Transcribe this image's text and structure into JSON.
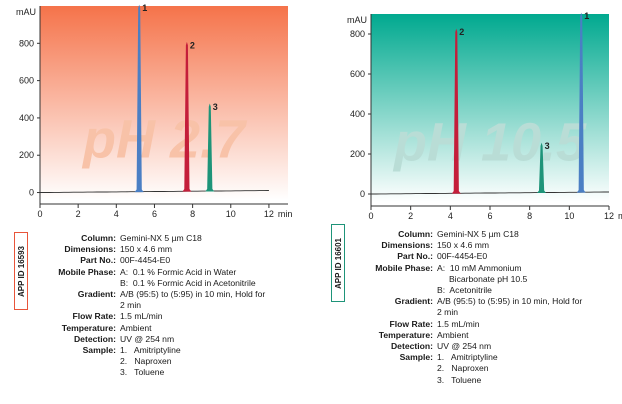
{
  "chart_data": [
    {
      "type": "line",
      "title": "",
      "watermark": "pH 2.7",
      "ylabel": "mAU",
      "xlabel_unit": "min",
      "xlim": [
        0,
        13
      ],
      "ylim": [
        -40,
        1000
      ],
      "x_ticks": [
        0,
        2,
        4,
        6,
        8,
        10,
        12
      ],
      "y_ticks": [
        0,
        200,
        400,
        600,
        800
      ],
      "grid": false,
      "background_gradient": [
        "#f5734a",
        "#ffffff"
      ],
      "watermark_color": "#f8c2a8",
      "baseline": {
        "start": 0,
        "end": 12
      },
      "peaks": [
        {
          "label": "1",
          "time": 5.2,
          "height": 1000,
          "color": "#4b7fc4"
        },
        {
          "label": "2",
          "time": 7.7,
          "height": 800,
          "color": "#c41e3a"
        },
        {
          "label": "3",
          "time": 8.9,
          "height": 470,
          "color": "#1e9479"
        }
      ],
      "app_id": "APP ID 16593",
      "app_id_color": "#e8553a",
      "conditions": [
        {
          "key": "Column:",
          "lines": [
            "Gemini-NX 5 µm C18"
          ]
        },
        {
          "key": "Dimensions:",
          "lines": [
            "150 x 4.6 mm"
          ]
        },
        {
          "key": "Part No.:",
          "lines": [
            "00F-4454-E0"
          ]
        },
        {
          "key": "Mobile Phase:",
          "lines": [
            "A:  0.1 % Formic Acid in Water",
            "B:  0.1 % Formic Acid in Acetonitrile"
          ]
        },
        {
          "key": "Gradient:",
          "lines": [
            "A/B (95:5) to (5:95) in 10 min, Hold for",
            "2 min"
          ]
        },
        {
          "key": "Flow Rate:",
          "lines": [
            "1.5 mL/min"
          ]
        },
        {
          "key": "Temperature:",
          "lines": [
            "Ambient"
          ]
        },
        {
          "key": "Detection:",
          "lines": [
            "UV @ 254 nm"
          ]
        },
        {
          "key": "Sample:",
          "lines": [
            "1.   Amitriptyline",
            "2.   Naproxen",
            "3.   Toluene"
          ]
        }
      ]
    },
    {
      "type": "line",
      "title": "",
      "watermark": "pH 10.5",
      "ylabel": "mAU",
      "xlabel_unit": "min",
      "xlim": [
        0,
        12
      ],
      "ylim": [
        -40,
        900
      ],
      "x_ticks": [
        0,
        2,
        4,
        6,
        8,
        10,
        12
      ],
      "y_ticks": [
        0,
        200,
        400,
        600,
        800
      ],
      "grid": false,
      "background_gradient": [
        "#00a98f",
        "#ffffff"
      ],
      "watermark_color": "#b9ddd6",
      "baseline": {
        "start": 0,
        "end": 12
      },
      "peaks": [
        {
          "label": "2",
          "time": 4.3,
          "height": 820,
          "color": "#c41e3a"
        },
        {
          "label": "3",
          "time": 8.6,
          "height": 250,
          "color": "#1e9479"
        },
        {
          "label": "1",
          "time": 10.6,
          "height": 900,
          "color": "#4b7fc4"
        }
      ],
      "app_id": "APP ID 16601",
      "app_id_color": "#1e9479",
      "conditions": [
        {
          "key": "Column:",
          "lines": [
            "Gemini-NX 5 µm C18"
          ]
        },
        {
          "key": "Dimensions:",
          "lines": [
            "150 x 4.6 mm"
          ]
        },
        {
          "key": "Part No.:",
          "lines": [
            "00F-4454-E0"
          ]
        },
        {
          "key": "Mobile Phase:",
          "lines": [
            "A:  10 mM Ammonium",
            "     Bicarbonate pH 10.5",
            "B:  Acetonitrile"
          ]
        },
        {
          "key": "Gradient:",
          "lines": [
            "A/B (95:5) to (5:95) in 10 min, Hold for",
            "2 min"
          ]
        },
        {
          "key": "Flow Rate:",
          "lines": [
            "1.5 mL/min"
          ]
        },
        {
          "key": "Temperature:",
          "lines": [
            "Ambient"
          ]
        },
        {
          "key": "Detection:",
          "lines": [
            "UV @ 254 nm"
          ]
        },
        {
          "key": "Sample:",
          "lines": [
            "1.   Amitriptyline",
            "2.   Naproxen",
            "3.   Toluene"
          ]
        }
      ]
    }
  ]
}
